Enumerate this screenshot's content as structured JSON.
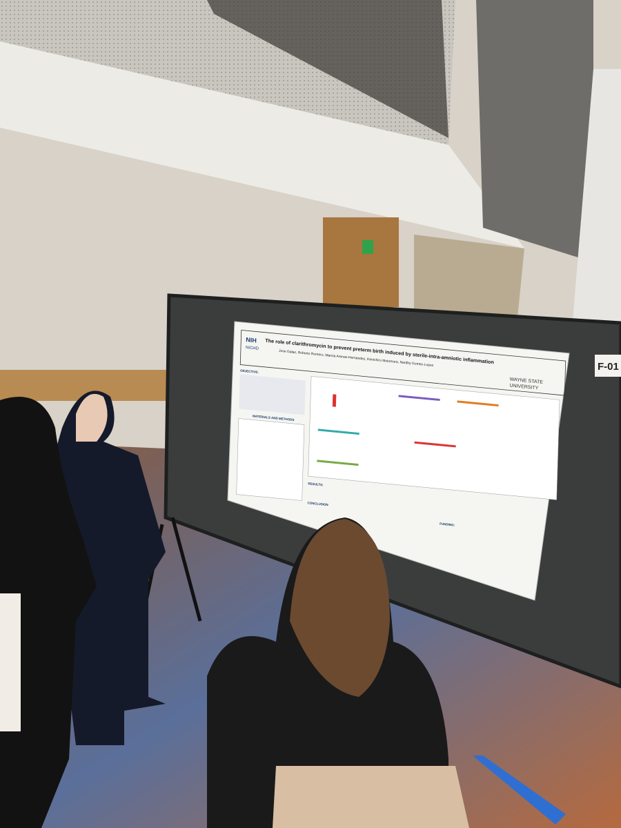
{
  "poster": {
    "logo": "NIH",
    "logo_sub": "NICHD",
    "title": "The role of clarithromycin to prevent preterm birth induced by sterile-intra-amniotic inflammation",
    "authors": "Jose Galaz, Roberto Romero, Marcia Arenas-Hernandez, Kenichiro Motomura, Nardhy Gomez-Lopez",
    "institution": [
      "WAYNE STATE",
      "UNIVERSITY"
    ],
    "sections": [
      "OBJECTIVE:",
      "MATERIALS AND METHODS",
      "RESULTS:",
      "CONCLUSION",
      "FUNDING:"
    ]
  },
  "board_label": "F-01"
}
